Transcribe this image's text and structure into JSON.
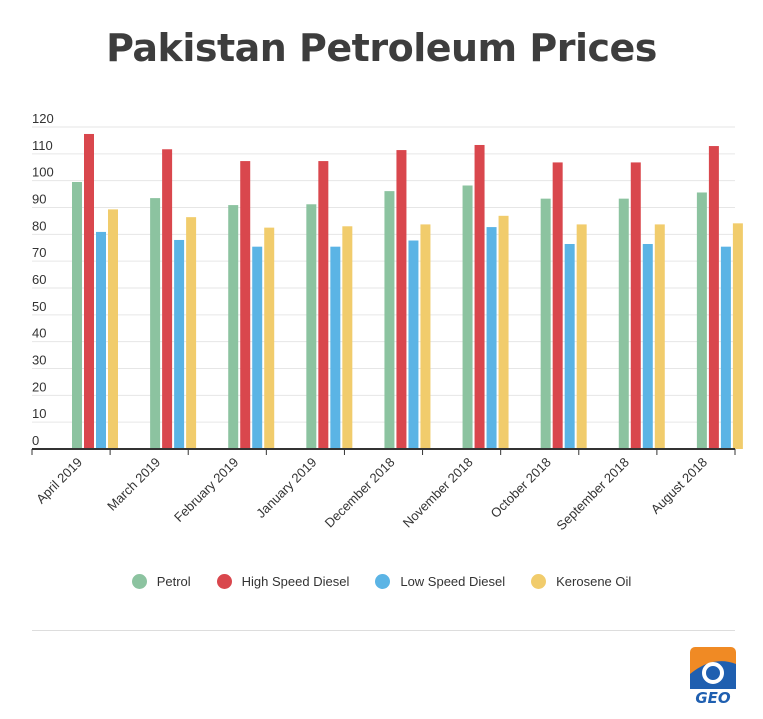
{
  "title": "Pakistan Petroleum Prices",
  "colors": {
    "petrol": "#8cc3a0",
    "high_speed_diesel": "#d9474d",
    "low_speed_diesel": "#5bb4e5",
    "kerosene_oil": "#f1cc6c"
  },
  "logo": {
    "text": "GEO"
  },
  "chart_data": {
    "type": "bar",
    "title": "Pakistan Petroleum Prices",
    "xlabel": "",
    "ylabel": "",
    "ylim": [
      0,
      120
    ],
    "yticks": [
      0,
      10,
      20,
      30,
      40,
      50,
      60,
      70,
      80,
      90,
      100,
      110,
      120
    ],
    "grid": true,
    "legend_position": "bottom",
    "categories": [
      "April 2019",
      "March 2019",
      "February 2019",
      "January 2019",
      "December 2018",
      "November 2018",
      "October 2018",
      "September 2018",
      "August 2018"
    ],
    "series": [
      {
        "name": "Petrol",
        "color": "#8cc3a0",
        "values": [
          99.5,
          93.5,
          90.9,
          91.2,
          96.1,
          98.2,
          93.3,
          93.3,
          95.6
        ]
      },
      {
        "name": "High Speed Diesel",
        "color": "#d9474d",
        "values": [
          117.4,
          111.7,
          107.3,
          107.3,
          111.4,
          113.3,
          106.8,
          106.8,
          112.9
        ]
      },
      {
        "name": "Low Speed Diesel",
        "color": "#5bb4e5",
        "values": [
          80.9,
          77.9,
          75.4,
          75.4,
          77.7,
          82.7,
          76.4,
          76.4,
          75.4
        ]
      },
      {
        "name": "Kerosene Oil",
        "color": "#f1cc6c",
        "values": [
          89.3,
          86.4,
          82.5,
          83.0,
          83.7,
          86.9,
          83.7,
          83.7,
          84.1
        ]
      }
    ]
  }
}
